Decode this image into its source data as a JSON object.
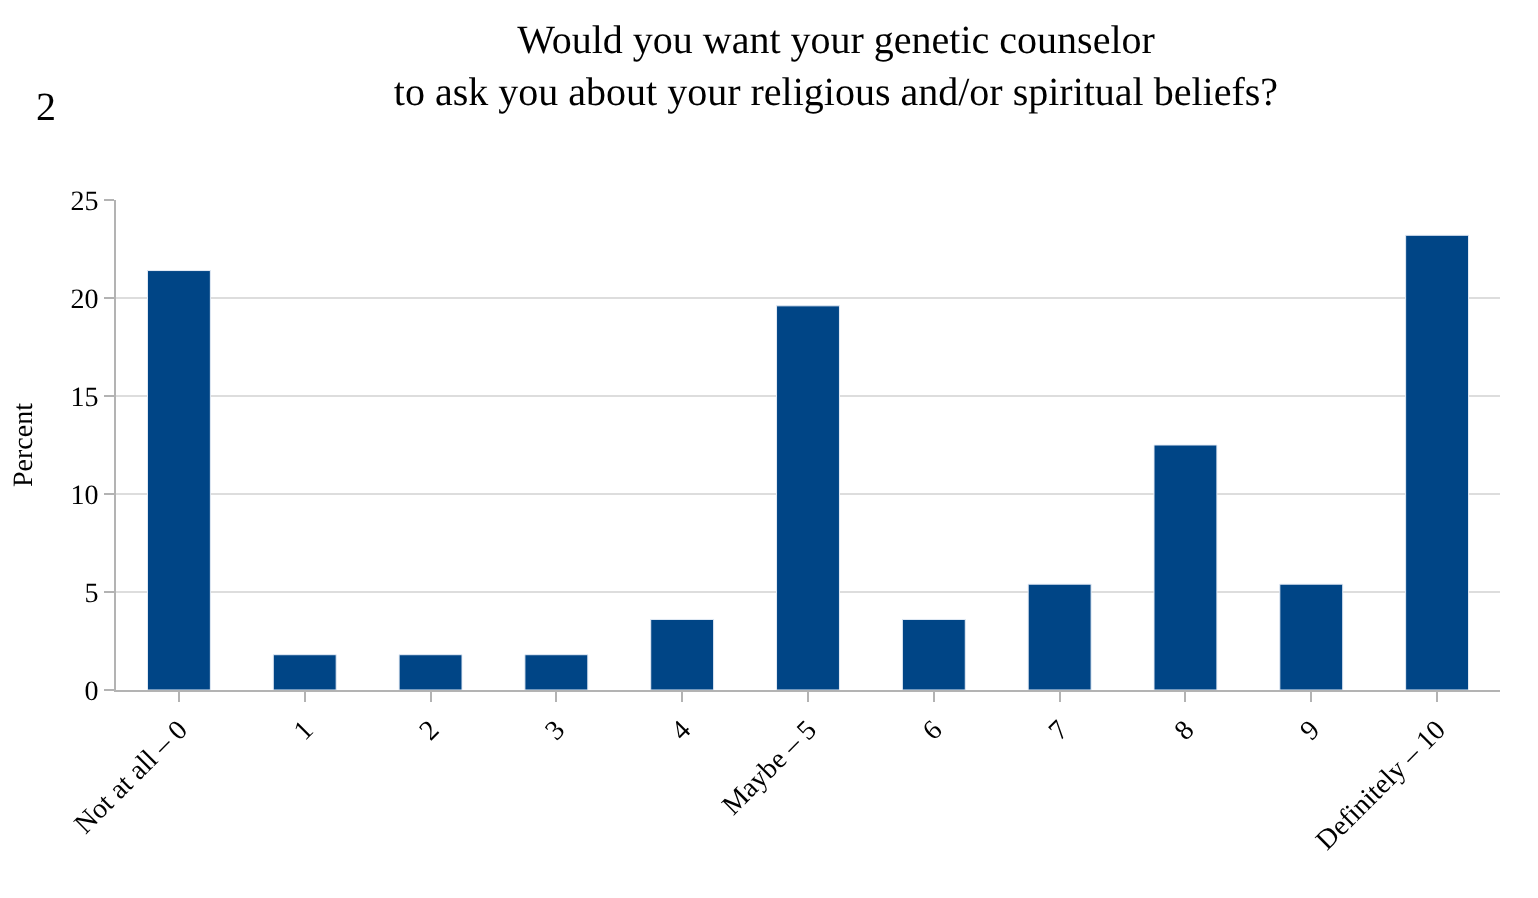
{
  "chart_data": {
    "type": "bar",
    "title": "Would you want your genetic counselor\nto ask you about your religious and/or spiritual beliefs?",
    "ylabel": "Percent",
    "categories": [
      "Not at all – 0",
      "1",
      "2",
      "3",
      "4",
      "Maybe – 5",
      "6",
      "7",
      "8",
      "9",
      "Definitely – 10"
    ],
    "values": [
      21.4,
      1.8,
      1.8,
      1.8,
      3.6,
      19.6,
      3.6,
      5.4,
      12.5,
      5.4,
      23.2
    ],
    "color": "#004586",
    "ylim": [
      0,
      25
    ],
    "yticks": [
      0,
      5,
      10,
      15,
      20,
      25
    ],
    "grid": "y",
    "annotations": [
      "2"
    ]
  }
}
